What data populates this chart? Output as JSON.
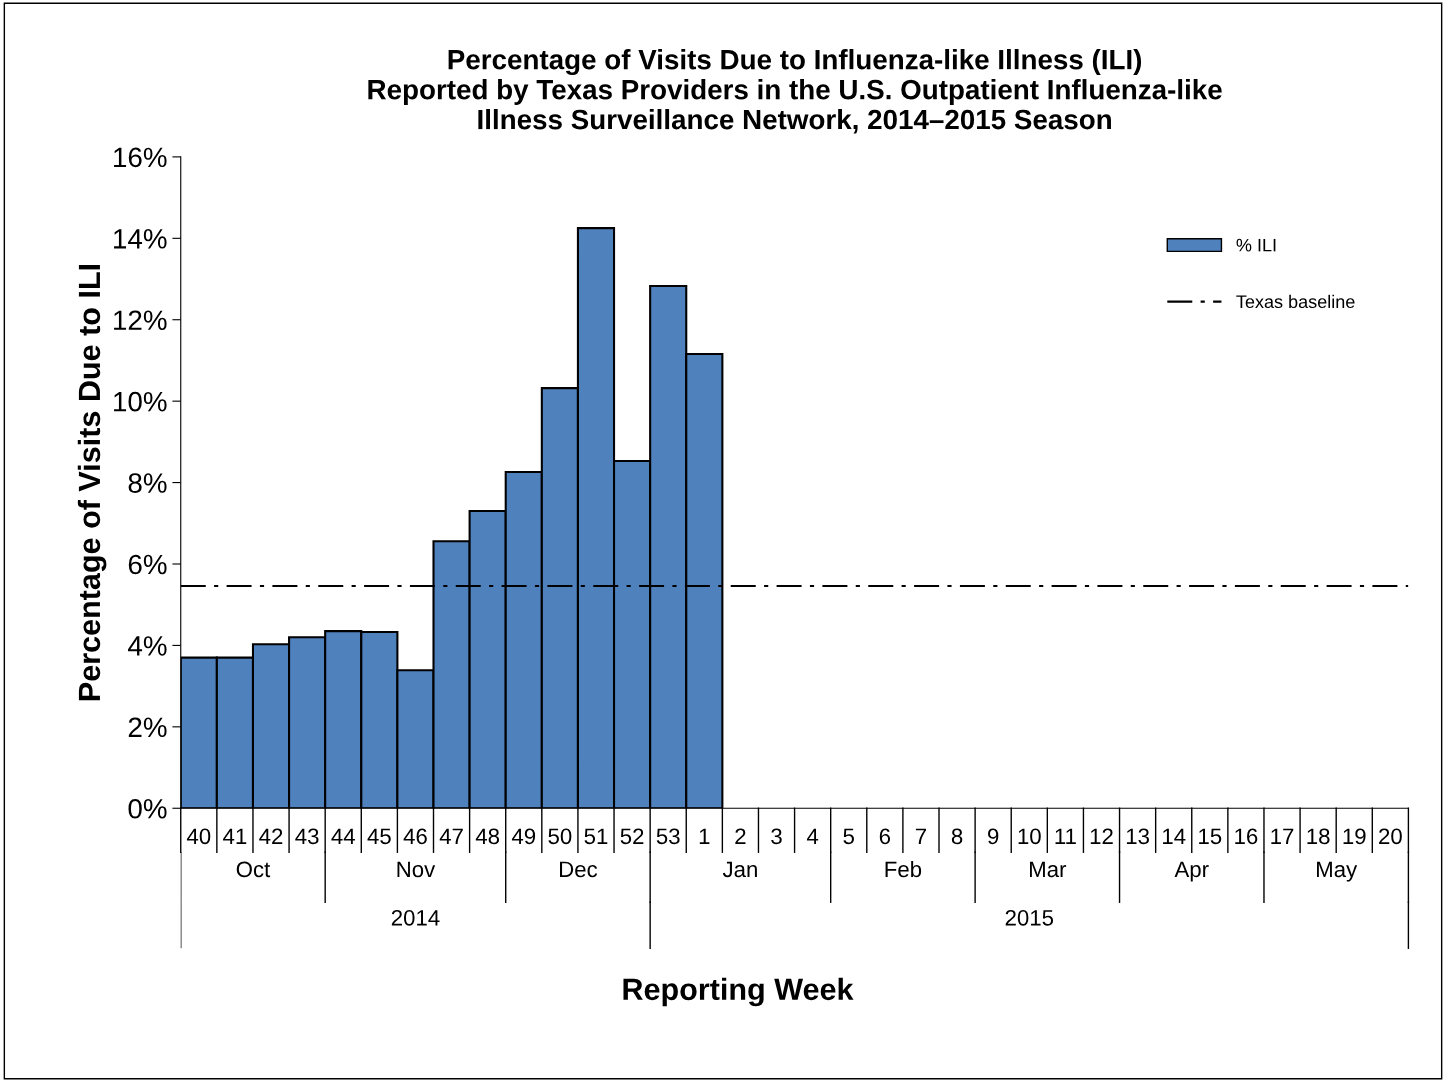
{
  "chart_data": {
    "type": "bar",
    "title": "Percentage of Visits Due to Influenza-like Illness (ILI)\nReported by Texas Providers in the U.S. Outpatient Influenza-like\nIllness Surveillance Network, 2014–2015 Season",
    "xlabel": "Reporting Week",
    "ylabel": "Percentage of Visits Due to ILI",
    "categories": [
      "40",
      "41",
      "42",
      "43",
      "44",
      "45",
      "46",
      "47",
      "48",
      "49",
      "50",
      "51",
      "52",
      "53",
      "1",
      "2",
      "3",
      "4",
      "5",
      "6",
      "7",
      "8",
      "9",
      "10",
      "11",
      "12",
      "13",
      "14",
      "15",
      "16",
      "17",
      "18",
      "19",
      "20"
    ],
    "series": [
      {
        "name": "% ILI",
        "color": "#4f81bd",
        "values": [
          3.7,
          3.7,
          4.03,
          4.2,
          4.35,
          4.33,
          3.39,
          6.56,
          7.3,
          8.26,
          10.32,
          14.25,
          8.53,
          12.83,
          11.16,
          null,
          null,
          null,
          null,
          null,
          null,
          null,
          null,
          null,
          null,
          null,
          null,
          null,
          null,
          null,
          null,
          null,
          null,
          null
        ]
      }
    ],
    "ylim": [
      0,
      16
    ],
    "yticks": [
      {
        "value": 0,
        "label": "0%"
      },
      {
        "value": 2,
        "label": "2%"
      },
      {
        "value": 4,
        "label": "4%"
      },
      {
        "value": 6,
        "label": "6%"
      },
      {
        "value": 8,
        "label": "8%"
      },
      {
        "value": 10,
        "label": "10%"
      },
      {
        "value": 12,
        "label": "12%"
      },
      {
        "value": 14,
        "label": "14%"
      },
      {
        "value": 16,
        "label": "16%"
      }
    ],
    "ref_lines": [
      {
        "axis": "y",
        "value": 5.46,
        "label": "Texas baseline",
        "color": "#000000",
        "line_style": "dashdot"
      }
    ],
    "annotations": [
      "Oct",
      "Nov",
      "Dec",
      "Jan",
      "Feb",
      "Mar",
      "Apr",
      "May",
      "2014",
      "2015"
    ],
    "legend": "top right",
    "grid": false
  }
}
